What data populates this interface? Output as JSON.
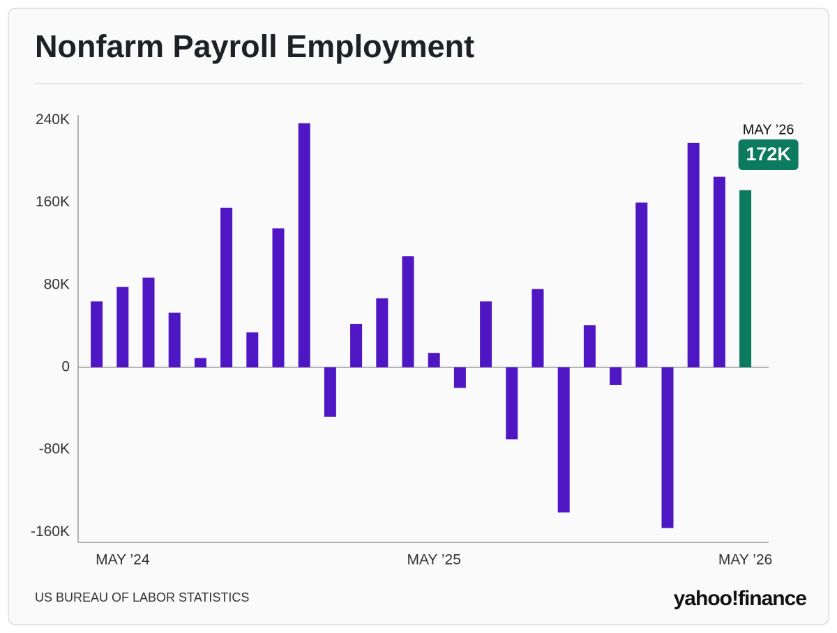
{
  "chart_data": {
    "type": "bar",
    "title": "Nonfarm Payroll Employment",
    "categories": [
      null,
      "MAY ’24",
      null,
      null,
      null,
      null,
      null,
      null,
      null,
      null,
      null,
      null,
      null,
      "MAY ’25",
      null,
      null,
      null,
      null,
      null,
      null,
      null,
      null,
      null,
      null,
      null,
      "MAY ’26"
    ],
    "values": [
      64,
      78,
      87,
      53,
      9,
      155,
      34,
      135,
      237,
      -48,
      42,
      67,
      108,
      14,
      -20,
      64,
      -70,
      76,
      -141,
      41,
      -17,
      160,
      -156,
      218,
      185,
      172
    ],
    "value_labels": [
      null,
      null,
      null,
      null,
      null,
      null,
      null,
      null,
      null,
      null,
      null,
      null,
      null,
      null,
      null,
      null,
      null,
      null,
      null,
      null,
      null,
      null,
      null,
      null,
      null,
      "172K"
    ],
    "color": "#4f17c4",
    "highlight_color": "#0b7a5e",
    "ylim": [
      -170,
      245
    ],
    "yticks": [
      {
        "value": 240,
        "label": "240K"
      },
      {
        "value": 160,
        "label": "160K"
      },
      {
        "value": 80,
        "label": "80K"
      },
      0,
      {
        "value": -80,
        "label": "-80K"
      },
      {
        "value": -160,
        "label": "-160K"
      }
    ],
    "grid": false,
    "source": "US BUREAU OF LABOR STATISTICS",
    "logo": "yahoo!finance"
  }
}
